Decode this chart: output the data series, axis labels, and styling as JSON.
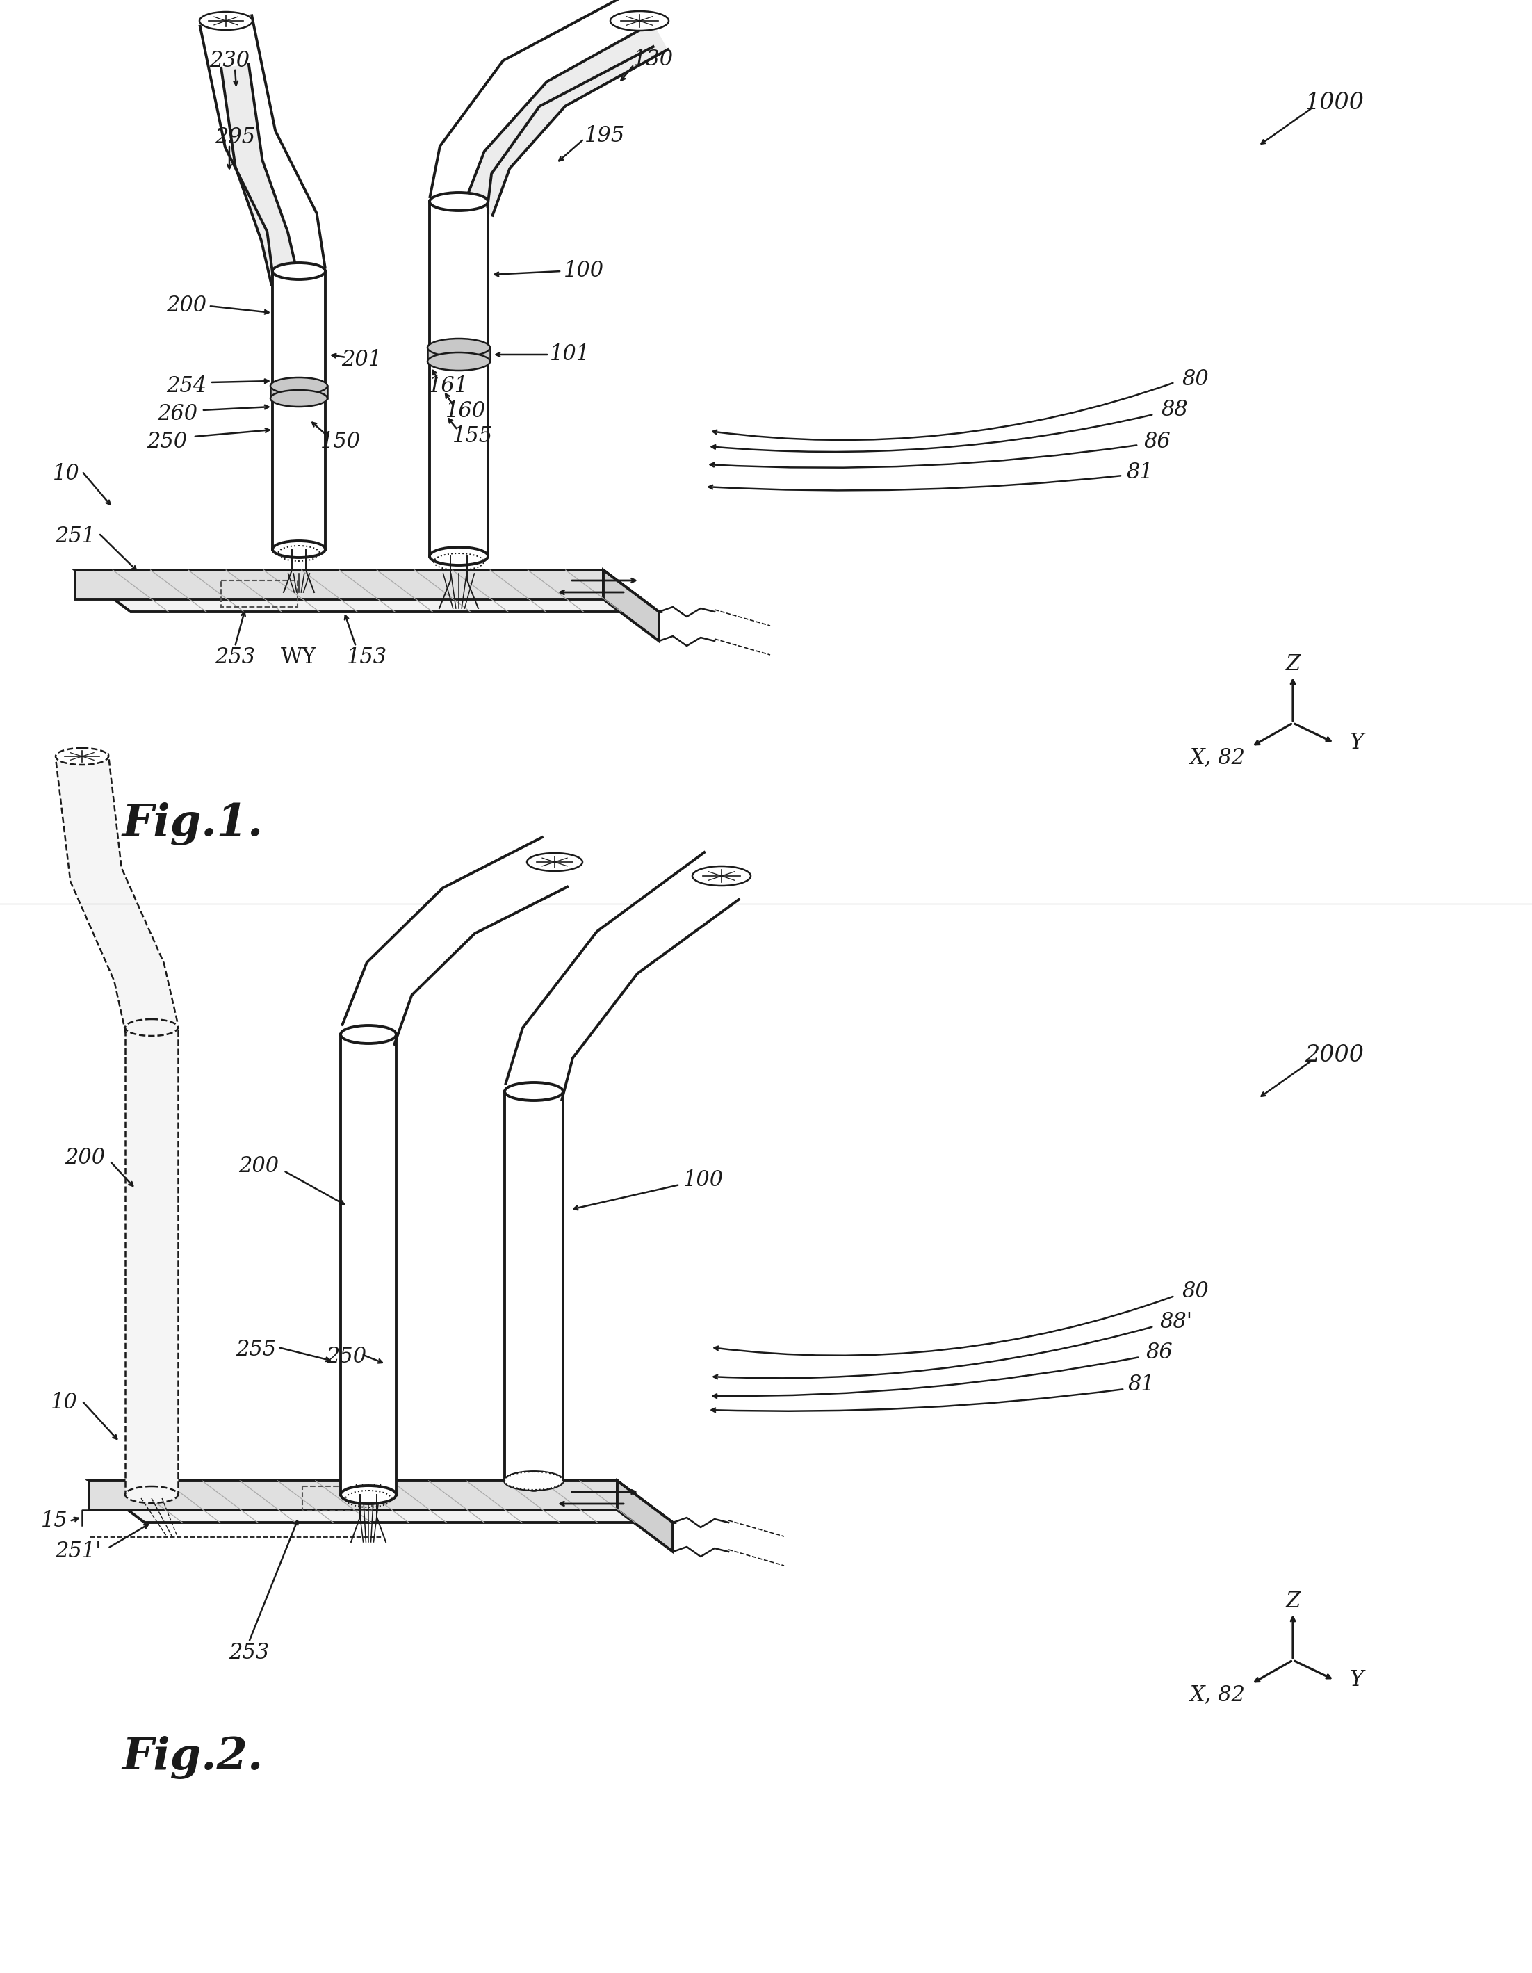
{
  "bg_color": "#ffffff",
  "line_color": "#1a1a1a",
  "fig1_title": "Fig.1.",
  "fig2_title": "Fig.2.",
  "fig1_ref": "1000",
  "fig2_ref": "2000",
  "coord_labels": [
    "Z",
    "Y",
    "X, 82"
  ]
}
